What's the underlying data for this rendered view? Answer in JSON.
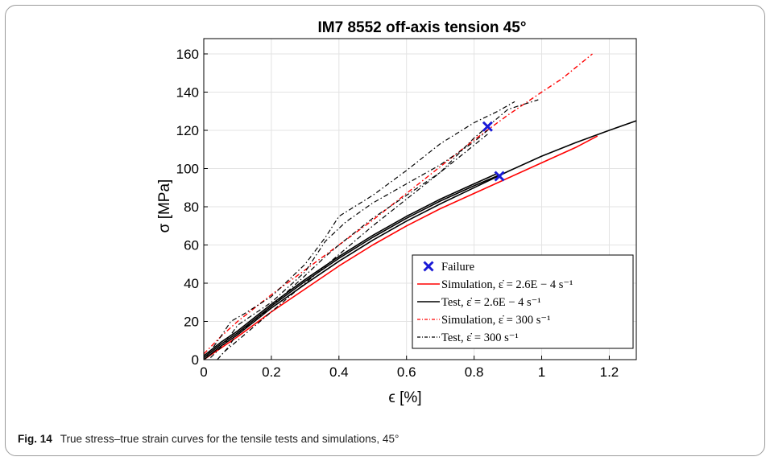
{
  "caption": {
    "label": "Fig. 14",
    "text": "True stress–true strain curves for the tensile tests and simulations, 45°"
  },
  "chart_data": {
    "type": "line",
    "title": "IM7 8552 off-axis tension 45°",
    "xlabel": "ϵ [%]",
    "ylabel": "σ [MPa]",
    "xlim": [
      0,
      1.28
    ],
    "ylim": [
      0,
      168
    ],
    "xticks": [
      0,
      0.2,
      0.4,
      0.6,
      0.8,
      1,
      1.2
    ],
    "xtick_labels": [
      "0",
      "0.2",
      "0.4",
      "0.6",
      "0.8",
      "1",
      "1.2"
    ],
    "yticks": [
      0,
      20,
      40,
      60,
      80,
      100,
      120,
      140,
      160
    ],
    "ytick_labels": [
      "0",
      "20",
      "40",
      "60",
      "80",
      "100",
      "120",
      "140",
      "160"
    ],
    "grid": true,
    "legend_position": "bottom-right",
    "legend": [
      {
        "text": "Failure",
        "color": "#1a1ad6",
        "style": "marker-x"
      },
      {
        "text": "Simulation, ε̇ = 2.6E − 4 s⁻¹",
        "color": "#ff0000",
        "style": "solid"
      },
      {
        "text": "Test, ε̇ = 2.6E − 4 s⁻¹",
        "color": "#000000",
        "style": "solid"
      },
      {
        "text": "Simulation, ε̇ = 300 s⁻¹",
        "color": "#ff0000",
        "style": "dashdot"
      },
      {
        "text": "Test, ε̇ = 300 s⁻¹",
        "color": "#000000",
        "style": "dashdot"
      }
    ],
    "series": [
      {
        "color": "#ff0000",
        "style": "solid",
        "width": 1.6,
        "x": [
          0,
          0.05,
          0.1,
          0.2,
          0.3,
          0.4,
          0.5,
          0.6,
          0.7,
          0.8,
          0.9,
          1.0,
          1.1,
          1.165
        ],
        "y": [
          0,
          6,
          12,
          25,
          37,
          49,
          60,
          70,
          79,
          87,
          95,
          103,
          111,
          117
        ]
      },
      {
        "color": "#000000",
        "style": "solid",
        "width": 1.6,
        "x": [
          0,
          0.05,
          0.1,
          0.2,
          0.3,
          0.4,
          0.5,
          0.6,
          0.7,
          0.8,
          0.9,
          1.0,
          1.1,
          1.2,
          1.28
        ],
        "y": [
          0,
          7,
          13,
          27,
          39.5,
          51.5,
          62.5,
          72.5,
          81.5,
          90,
          98.5,
          106.5,
          113.5,
          120,
          125
        ]
      },
      {
        "color": "#000000",
        "style": "solid",
        "width": 1.6,
        "x": [
          0,
          0.05,
          0.1,
          0.2,
          0.3,
          0.4,
          0.5,
          0.6,
          0.7,
          0.8,
          0.88
        ],
        "y": [
          1,
          8,
          14,
          28,
          41,
          53,
          64,
          74,
          83,
          91,
          97
        ]
      },
      {
        "color": "#000000",
        "style": "solid",
        "width": 1.6,
        "x": [
          0,
          0.05,
          0.1,
          0.2,
          0.3,
          0.4,
          0.5,
          0.6,
          0.7,
          0.8,
          0.87
        ],
        "y": [
          2,
          9,
          15,
          29,
          42,
          54,
          65,
          75,
          84,
          92,
          97.5
        ]
      },
      {
        "color": "#ff0000",
        "style": "dashdot",
        "width": 1.4,
        "x": [
          0,
          0.05,
          0.1,
          0.2,
          0.3,
          0.4,
          0.5,
          0.6,
          0.7,
          0.8,
          0.9,
          1.0,
          1.06,
          1.15
        ],
        "y": [
          3,
          12,
          20,
          34,
          47,
          60,
          73,
          87,
          101,
          115,
          128,
          140,
          147,
          160
        ]
      },
      {
        "color": "#000000",
        "style": "dashdot",
        "width": 1.2,
        "x": [
          0.01,
          0.05,
          0.08,
          0.12,
          0.2,
          0.3,
          0.36,
          0.4,
          0.5,
          0.6,
          0.7,
          0.8,
          0.87,
          0.92
        ],
        "y": [
          2,
          12,
          20,
          24,
          33,
          50,
          64,
          75,
          86,
          99,
          113,
          124,
          130,
          135
        ]
      },
      {
        "color": "#000000",
        "style": "dashdot",
        "width": 1.2,
        "x": [
          0.02,
          0.06,
          0.1,
          0.15,
          0.2,
          0.3,
          0.36,
          0.42,
          0.5,
          0.6,
          0.7,
          0.8,
          0.84
        ],
        "y": [
          1,
          8,
          18,
          24,
          30,
          46,
          62,
          72,
          82,
          92,
          102,
          114,
          120
        ]
      },
      {
        "color": "#000000",
        "style": "dashdot",
        "width": 1.2,
        "x": [
          0.04,
          0.07,
          0.1,
          0.15,
          0.2,
          0.3,
          0.36,
          0.4,
          0.5,
          0.6,
          0.7,
          0.8,
          0.9,
          0.99
        ],
        "y": [
          0,
          6,
          14,
          20,
          28,
          44,
          54,
          60,
          74,
          86,
          98,
          116,
          131,
          136
        ]
      },
      {
        "color": "#000000",
        "style": "dashdot",
        "width": 1.2,
        "x": [
          0.04,
          0.06,
          0.1,
          0.2,
          0.3,
          0.4,
          0.5,
          0.6,
          0.7,
          0.84
        ],
        "y": [
          0,
          4,
          10,
          25,
          40,
          55,
          70,
          84,
          98,
          118
        ]
      }
    ],
    "failure_points": [
      {
        "x": 0.84,
        "y": 122
      },
      {
        "x": 0.875,
        "y": 96
      }
    ]
  }
}
